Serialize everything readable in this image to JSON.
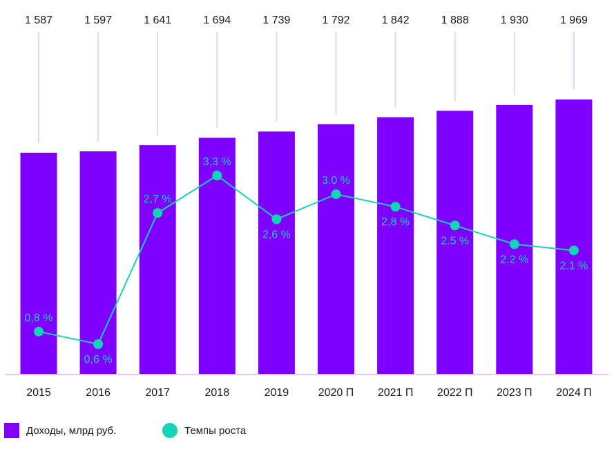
{
  "chart_data": {
    "type": "bar",
    "categories": [
      "2015",
      "2016",
      "2017",
      "2018",
      "2019",
      "2020 П",
      "2021 П",
      "2022 П",
      "2023 П",
      "2024 П"
    ],
    "series": [
      {
        "name": "Доходы, млрд руб.",
        "type": "bar",
        "values": [
          1587,
          1597,
          1641,
          1694,
          1739,
          1792,
          1842,
          1888,
          1930,
          1969
        ],
        "value_labels": [
          "1 587",
          "1 597",
          "1 641",
          "1 694",
          "1 739",
          "1 792",
          "1 842",
          "1 888",
          "1 930",
          "1 969"
        ],
        "color": "#7f00ff"
      },
      {
        "name": "Темпы роста",
        "type": "line",
        "values": [
          0.8,
          0.6,
          2.7,
          3.3,
          2.6,
          3.0,
          2.8,
          2.5,
          2.2,
          2.1
        ],
        "value_labels": [
          "0,8 %",
          "0,6 %",
          "2,7 %",
          "3,3 %",
          "2,6 %",
          "3.0 %",
          "2,8 %",
          "2.5 %",
          "2.2 %",
          "2.1 %"
        ],
        "color": "#13d4b4"
      }
    ],
    "xlabel": "",
    "ylabel": "",
    "bar_ylim": [
      0,
      1969
    ],
    "growth_ylim": [
      0,
      3.5
    ],
    "grid": false,
    "legend": "bottom-left"
  },
  "colors": {
    "bar": "#7f00ff",
    "line": "#13d4b4",
    "stem": "#e6d6f7",
    "axis": "#e8c8f3",
    "text": "#1a1a1a"
  }
}
